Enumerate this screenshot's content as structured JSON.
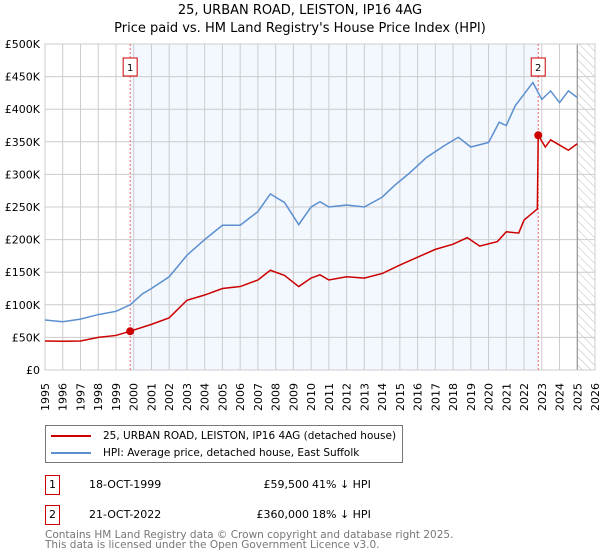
{
  "chart_data": {
    "type": "line",
    "title": "25, URBAN ROAD, LEISTON, IP16 4AG",
    "subtitle": "Price paid vs. HM Land Registry's House Price Index (HPI)",
    "xlim": [
      1995,
      2026
    ],
    "ylim": [
      0,
      500000
    ],
    "x_ticks": [
      "1995",
      "1996",
      "1997",
      "1998",
      "1999",
      "2000",
      "2001",
      "2002",
      "2003",
      "2004",
      "2005",
      "2006",
      "2007",
      "2008",
      "2009",
      "2010",
      "2011",
      "2012",
      "2013",
      "2014",
      "2015",
      "2016",
      "2017",
      "2018",
      "2019",
      "2020",
      "2021",
      "2022",
      "2023",
      "2024",
      "2025",
      "2026"
    ],
    "y_ticks": [
      {
        "v": 0,
        "l": "£0"
      },
      {
        "v": 50000,
        "l": "£50K"
      },
      {
        "v": 100000,
        "l": "£100K"
      },
      {
        "v": 150000,
        "l": "£150K"
      },
      {
        "v": 200000,
        "l": "£200K"
      },
      {
        "v": 250000,
        "l": "£250K"
      },
      {
        "v": 300000,
        "l": "£300K"
      },
      {
        "v": 350000,
        "l": "£350K"
      },
      {
        "v": 400000,
        "l": "£400K"
      },
      {
        "v": 450000,
        "l": "£450K"
      },
      {
        "v": 500000,
        "l": "£500K"
      }
    ],
    "grid": true,
    "shaded_range": [
      1999.8,
      2022.8
    ],
    "future_hatch_from": 2025.0,
    "series": [
      {
        "name": "25, URBAN ROAD, LEISTON, IP16 4AG (detached house)",
        "color": "#cc0000",
        "x": [
          1995,
          1996,
          1997,
          1998,
          1999,
          1999.8,
          2001,
          2002,
          2003,
          2004,
          2005,
          2006,
          2007,
          2007.7,
          2008.5,
          2009.3,
          2010,
          2010.5,
          2011,
          2012,
          2013,
          2014,
          2015,
          2016,
          2017,
          2018,
          2018.8,
          2019.5,
          2020.5,
          2021,
          2021.7,
          2022,
          2022.75,
          2022.8,
          2023.2,
          2023.5,
          2024,
          2024.5,
          2025
        ],
        "y": [
          44500,
          44000,
          44500,
          50000,
          53000,
          59500,
          70000,
          80000,
          107000,
          115000,
          125000,
          128000,
          138000,
          153000,
          145000,
          128000,
          141000,
          146000,
          138000,
          143000,
          141000,
          148000,
          161000,
          173000,
          185000,
          193000,
          203000,
          190000,
          197000,
          212000,
          210000,
          230000,
          247000,
          360000,
          342000,
          353000,
          345000,
          337000,
          347000
        ]
      },
      {
        "name": "HPI: Average price, detached house, East Suffolk",
        "color": "#5b8fd0",
        "x": [
          1995,
          1996,
          1997,
          1998,
          1999,
          1999.8,
          2000.5,
          2001,
          2002,
          2003,
          2004,
          2005,
          2006,
          2007,
          2007.7,
          2008.5,
          2009.3,
          2010,
          2010.5,
          2011,
          2012,
          2013,
          2014,
          2014.7,
          2015.5,
          2016.5,
          2017.5,
          2018.3,
          2019,
          2020,
          2020.6,
          2021,
          2021.5,
          2022.5,
          2023,
          2023.5,
          2024,
          2024.5,
          2025
        ],
        "y": [
          76700,
          74000,
          78000,
          85000,
          90000,
          100000,
          117000,
          125000,
          143000,
          176000,
          200000,
          222000,
          222000,
          243000,
          270000,
          257000,
          223000,
          250000,
          258000,
          250000,
          253000,
          250000,
          265000,
          283000,
          301000,
          326000,
          344000,
          357000,
          342000,
          349000,
          380000,
          375000,
          405000,
          441000,
          415000,
          428000,
          410000,
          428000,
          418000
        ]
      }
    ],
    "sales": [
      {
        "n": "1",
        "year": 1999.8,
        "price": 59500,
        "date": "18-OCT-1999",
        "price_label": "£59,500",
        "hpi": "41% ↓ HPI"
      },
      {
        "n": "2",
        "year": 2022.8,
        "price": 360000,
        "date": "21-OCT-2022",
        "price_label": "£360,000",
        "hpi": "18% ↓ HPI"
      }
    ]
  },
  "footer": {
    "line1": "Contains HM Land Registry data © Crown copyright and database right 2025.",
    "line2": "This data is licensed under the Open Government Licence v3.0."
  }
}
